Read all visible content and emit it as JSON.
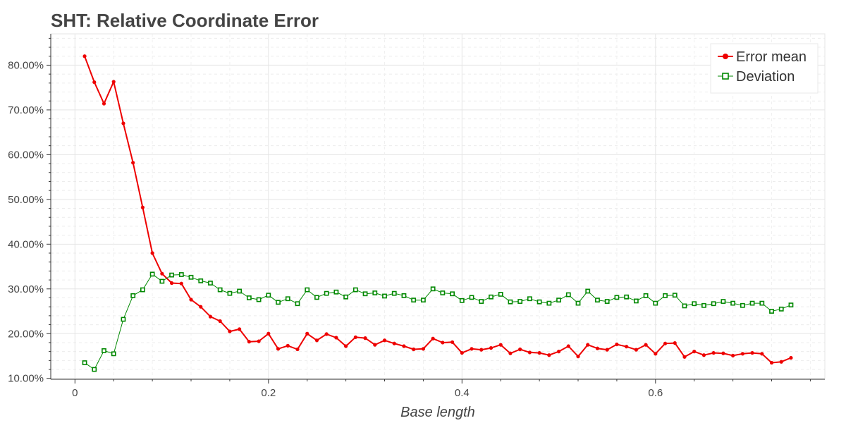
{
  "chart_data": {
    "type": "line",
    "title": "SHT: Relative Coordinate Error",
    "xlabel": "Base length",
    "ylabel": "",
    "xlim": [
      -0.025,
      0.775
    ],
    "ylim": [
      0.098,
      0.87
    ],
    "x_ticks": [
      0,
      0.2,
      0.4,
      0.6
    ],
    "x_tick_labels": [
      "0",
      "0.2",
      "0.4",
      "0.6"
    ],
    "y_ticks": [
      0.1,
      0.2,
      0.3,
      0.4,
      0.5,
      0.6,
      0.7,
      0.8
    ],
    "y_tick_labels": [
      "10.00%",
      "20.00%",
      "30.00%",
      "40.00%",
      "50.00%",
      "60.00%",
      "70.00%",
      "80.00%"
    ],
    "grid": true,
    "legend_position": "top-right",
    "x": [
      0.01,
      0.02,
      0.03,
      0.04,
      0.05,
      0.06,
      0.07,
      0.08,
      0.09,
      0.1,
      0.11,
      0.12,
      0.13,
      0.14,
      0.15,
      0.16,
      0.17,
      0.18,
      0.19,
      0.2,
      0.21,
      0.22,
      0.23,
      0.24,
      0.25,
      0.26,
      0.27,
      0.28,
      0.29,
      0.3,
      0.31,
      0.32,
      0.33,
      0.34,
      0.35,
      0.36,
      0.37,
      0.38,
      0.39,
      0.4,
      0.41,
      0.42,
      0.43,
      0.44,
      0.45,
      0.46,
      0.47,
      0.48,
      0.49,
      0.5,
      0.51,
      0.52,
      0.53,
      0.54,
      0.55,
      0.56,
      0.57,
      0.58,
      0.59,
      0.6,
      0.61,
      0.62,
      0.63,
      0.64,
      0.65,
      0.66,
      0.67,
      0.68,
      0.69,
      0.7,
      0.71,
      0.72,
      0.73,
      0.74
    ],
    "series": [
      {
        "name": "Error mean",
        "color": "#ee0000",
        "marker": "circle",
        "values": [
          0.82,
          0.762,
          0.714,
          0.763,
          0.67,
          0.582,
          0.482,
          0.38,
          0.334,
          0.313,
          0.312,
          0.276,
          0.26,
          0.238,
          0.228,
          0.205,
          0.21,
          0.182,
          0.183,
          0.2,
          0.166,
          0.173,
          0.165,
          0.2,
          0.185,
          0.199,
          0.191,
          0.172,
          0.192,
          0.19,
          0.175,
          0.185,
          0.178,
          0.172,
          0.165,
          0.166,
          0.189,
          0.18,
          0.181,
          0.157,
          0.166,
          0.164,
          0.168,
          0.175,
          0.156,
          0.165,
          0.158,
          0.157,
          0.152,
          0.16,
          0.172,
          0.149,
          0.175,
          0.167,
          0.164,
          0.176,
          0.171,
          0.164,
          0.175,
          0.155,
          0.178,
          0.179,
          0.148,
          0.16,
          0.152,
          0.157,
          0.156,
          0.151,
          0.155,
          0.157,
          0.155,
          0.135,
          0.137,
          0.146
        ]
      },
      {
        "name": "Deviation",
        "color": "#008800",
        "marker": "square",
        "values": [
          0.135,
          0.12,
          0.162,
          0.155,
          0.232,
          0.285,
          0.298,
          0.333,
          0.317,
          0.331,
          0.332,
          0.326,
          0.318,
          0.313,
          0.298,
          0.29,
          0.295,
          0.28,
          0.276,
          0.286,
          0.27,
          0.278,
          0.267,
          0.298,
          0.281,
          0.29,
          0.293,
          0.282,
          0.298,
          0.289,
          0.291,
          0.284,
          0.29,
          0.285,
          0.275,
          0.275,
          0.3,
          0.291,
          0.289,
          0.274,
          0.281,
          0.272,
          0.282,
          0.288,
          0.271,
          0.272,
          0.278,
          0.271,
          0.268,
          0.275,
          0.287,
          0.268,
          0.295,
          0.275,
          0.272,
          0.281,
          0.282,
          0.273,
          0.285,
          0.268,
          0.285,
          0.286,
          0.262,
          0.267,
          0.263,
          0.267,
          0.272,
          0.268,
          0.263,
          0.268,
          0.268,
          0.25,
          0.255,
          0.264
        ]
      }
    ]
  }
}
